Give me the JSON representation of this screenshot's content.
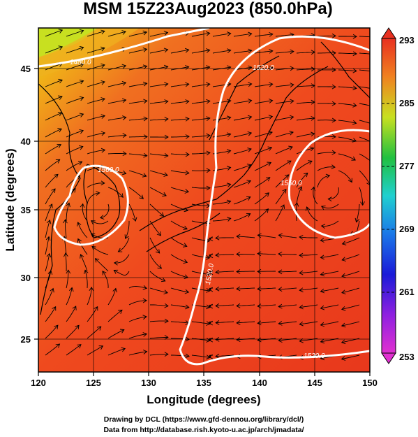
{
  "title": "MSM 15Z23Aug2023 (850.0hPa)",
  "x_axis": {
    "label": "Longitude (degrees)",
    "ticks": [
      "120",
      "125",
      "130",
      "135",
      "140",
      "145",
      "150"
    ],
    "range": [
      120,
      150
    ]
  },
  "y_axis": {
    "label": "Latitude  (degrees)",
    "ticks": [
      "25",
      "30",
      "35",
      "40",
      "45"
    ],
    "range": [
      22.5,
      47.5
    ]
  },
  "colorbar": {
    "ticks": [
      "293",
      "285",
      "277",
      "269",
      "261",
      "253"
    ],
    "range": [
      253,
      293
    ]
  },
  "contour_labels": [
    "1480.0",
    "1520.0",
    "1560.0",
    "1560.0",
    "1520.0",
    "1520.0"
  ],
  "credits": {
    "line1": "Drawing by DCL (https://www.gfd-dennou.org/library/dcl/)",
    "line2": "Data from http://database.rish.kyoto-u.ac.jp/arch/jmadata/"
  },
  "colors": {
    "warm_fill": "#f0401e",
    "contour": "#ffffff",
    "streamline": "#000000"
  }
}
